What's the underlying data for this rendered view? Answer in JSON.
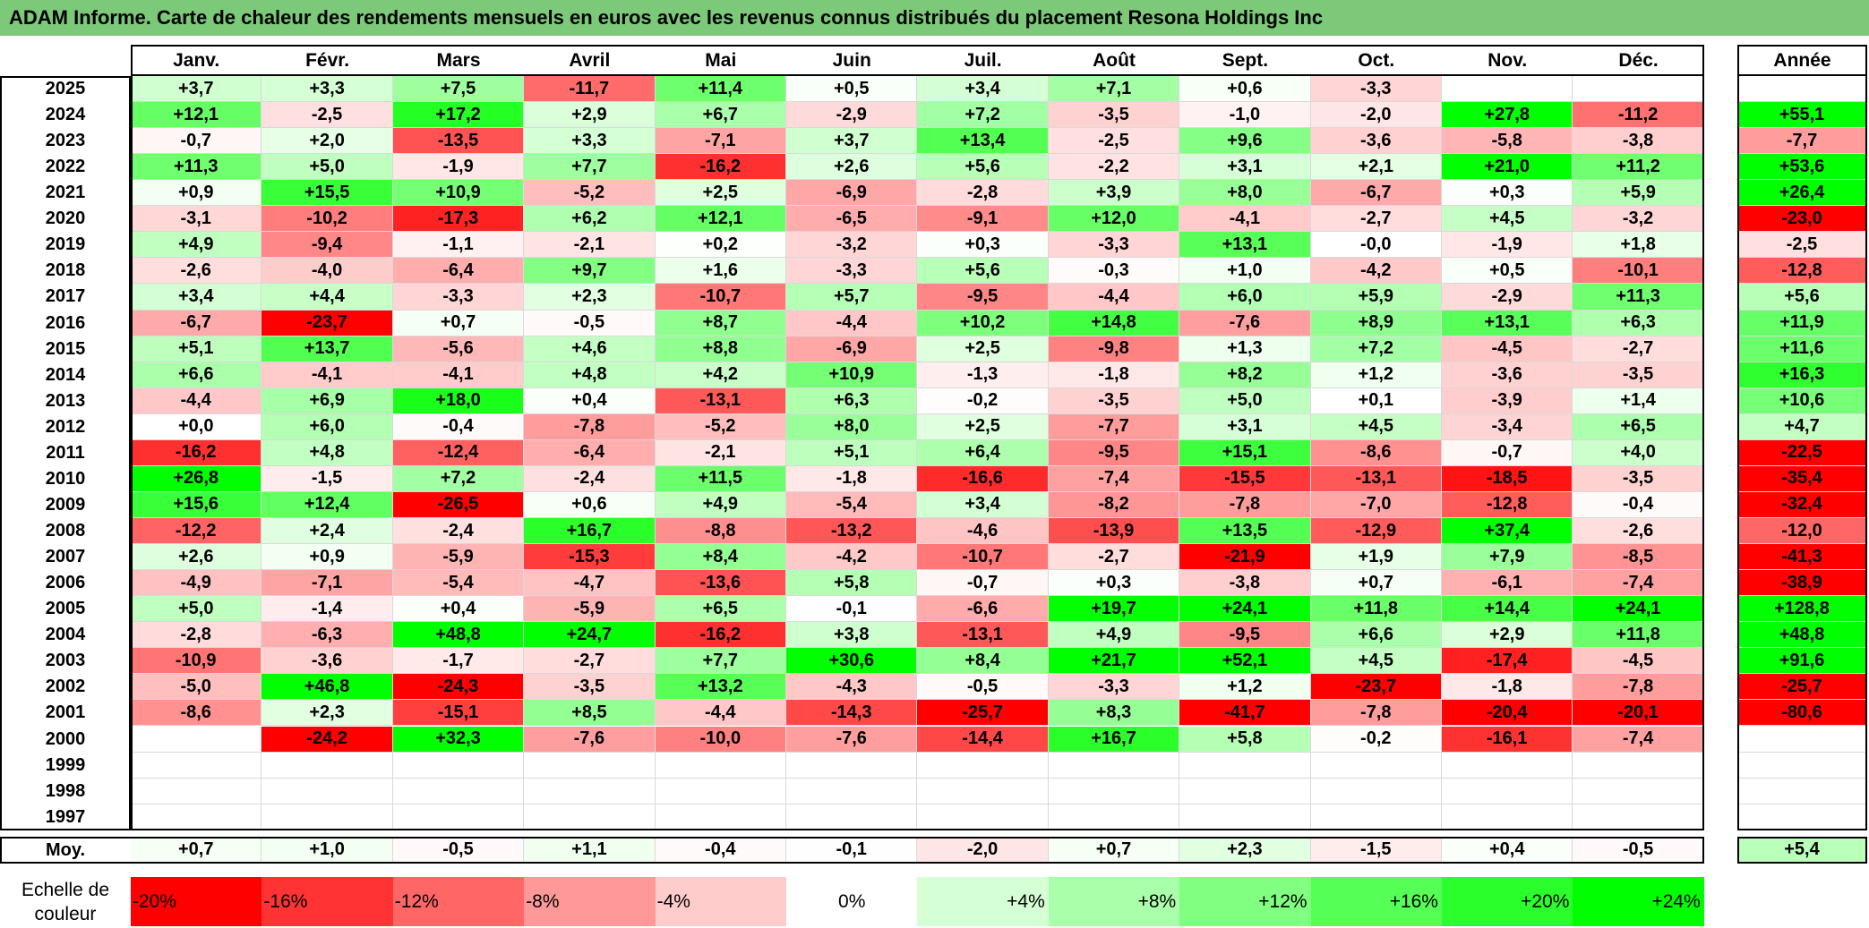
{
  "title": "ADAM Informe. Carte de chaleur des rendements mensuels en euros avec les revenus connus distribués du placement Resona Holdings Inc",
  "colors": {
    "title_bar": "#7dc97a",
    "negative_max": "#ff0000",
    "neutral": "#ffffff",
    "positive_max": "#00ff00"
  },
  "chart_data": {
    "type": "heatmap",
    "title": "ADAM Informe. Carte de chaleur des rendements mensuels en euros avec les revenus connus distribués du placement Resona Holdings Inc",
    "columns": [
      "Janv.",
      "Févr.",
      "Mars",
      "Avril",
      "Mai",
      "Juin",
      "Juil.",
      "Août",
      "Sept.",
      "Oct.",
      "Nov.",
      "Déc."
    ],
    "year_column_label": "Année",
    "rows": [
      {
        "year": "2025",
        "values": [
          "+3,7",
          "+3,3",
          "+7,5",
          "-11,7",
          "+11,4",
          "+0,5",
          "+3,4",
          "+7,1",
          "+0,6",
          "-3,3",
          "",
          ""
        ],
        "annual": ""
      },
      {
        "year": "2024",
        "values": [
          "+12,1",
          "-2,5",
          "+17,2",
          "+2,9",
          "+6,7",
          "-2,9",
          "+7,2",
          "-3,5",
          "-1,0",
          "-2,0",
          "+27,8",
          "-11,2"
        ],
        "annual": "+55,1"
      },
      {
        "year": "2023",
        "values": [
          "-0,7",
          "+2,0",
          "-13,5",
          "+3,3",
          "-7,1",
          "+3,7",
          "+13,4",
          "-2,5",
          "+9,6",
          "-3,6",
          "-5,8",
          "-3,8"
        ],
        "annual": "-7,7"
      },
      {
        "year": "2022",
        "values": [
          "+11,3",
          "+5,0",
          "-1,9",
          "+7,7",
          "-16,2",
          "+2,6",
          "+5,6",
          "-2,2",
          "+3,1",
          "+2,1",
          "+21,0",
          "+11,2"
        ],
        "annual": "+53,6"
      },
      {
        "year": "2021",
        "values": [
          "+0,9",
          "+15,5",
          "+10,9",
          "-5,2",
          "+2,5",
          "-6,9",
          "-2,8",
          "+3,9",
          "+8,0",
          "-6,7",
          "+0,3",
          "+5,9"
        ],
        "annual": "+26,4"
      },
      {
        "year": "2020",
        "values": [
          "-3,1",
          "-10,2",
          "-17,3",
          "+6,2",
          "+12,1",
          "-6,5",
          "-9,1",
          "+12,0",
          "-4,1",
          "-2,7",
          "+4,5",
          "-3,2"
        ],
        "annual": "-23,0"
      },
      {
        "year": "2019",
        "values": [
          "+4,9",
          "-9,4",
          "-1,1",
          "-2,1",
          "+0,2",
          "-3,2",
          "+0,3",
          "-3,3",
          "+13,1",
          "-0,0",
          "-1,9",
          "+1,8"
        ],
        "annual": "-2,5"
      },
      {
        "year": "2018",
        "values": [
          "-2,6",
          "-4,0",
          "-6,4",
          "+9,7",
          "+1,6",
          "-3,3",
          "+5,6",
          "-0,3",
          "+1,0",
          "-4,2",
          "+0,5",
          "-10,1"
        ],
        "annual": "-12,8"
      },
      {
        "year": "2017",
        "values": [
          "+3,4",
          "+4,4",
          "-3,3",
          "+2,3",
          "-10,7",
          "+5,7",
          "-9,5",
          "-4,4",
          "+6,0",
          "+5,9",
          "-2,9",
          "+11,3"
        ],
        "annual": "+5,6"
      },
      {
        "year": "2016",
        "values": [
          "-6,7",
          "-23,7",
          "+0,7",
          "-0,5",
          "+8,7",
          "-4,4",
          "+10,2",
          "+14,8",
          "-7,6",
          "+8,9",
          "+13,1",
          "+6,3"
        ],
        "annual": "+11,9"
      },
      {
        "year": "2015",
        "values": [
          "+5,1",
          "+13,7",
          "-5,6",
          "+4,6",
          "+8,8",
          "-6,9",
          "+2,5",
          "-9,8",
          "+1,3",
          "+7,2",
          "-4,5",
          "-2,7"
        ],
        "annual": "+11,6"
      },
      {
        "year": "2014",
        "values": [
          "+6,6",
          "-4,1",
          "-4,1",
          "+4,8",
          "+4,2",
          "+10,9",
          "-1,3",
          "-1,8",
          "+8,2",
          "+1,2",
          "-3,6",
          "-3,5"
        ],
        "annual": "+16,3"
      },
      {
        "year": "2013",
        "values": [
          "-4,4",
          "+6,9",
          "+18,0",
          "+0,4",
          "-13,1",
          "+6,3",
          "-0,2",
          "-3,5",
          "+5,0",
          "+0,1",
          "-3,9",
          "+1,4"
        ],
        "annual": "+10,6"
      },
      {
        "year": "2012",
        "values": [
          "+0,0",
          "+6,0",
          "-0,4",
          "-7,8",
          "-5,2",
          "+8,0",
          "+2,5",
          "-7,7",
          "+3,1",
          "+4,5",
          "-3,4",
          "+6,5"
        ],
        "annual": "+4,7"
      },
      {
        "year": "2011",
        "values": [
          "-16,2",
          "+4,8",
          "-12,4",
          "-6,4",
          "-2,1",
          "+5,1",
          "+6,4",
          "-9,5",
          "+15,1",
          "-8,6",
          "-0,7",
          "+4,0"
        ],
        "annual": "-22,5"
      },
      {
        "year": "2010",
        "values": [
          "+26,8",
          "-1,5",
          "+7,2",
          "-2,4",
          "+11,5",
          "-1,8",
          "-16,6",
          "-7,4",
          "-15,5",
          "-13,1",
          "-18,5",
          "-3,5"
        ],
        "annual": "-35,4"
      },
      {
        "year": "2009",
        "values": [
          "+15,6",
          "+12,4",
          "-26,5",
          "+0,6",
          "+4,9",
          "-5,4",
          "+3,4",
          "-8,2",
          "-7,8",
          "-7,0",
          "-12,8",
          "-0,4"
        ],
        "annual": "-32,4"
      },
      {
        "year": "2008",
        "values": [
          "-12,2",
          "+2,4",
          "-2,4",
          "+16,7",
          "-8,8",
          "-13,2",
          "-4,6",
          "-13,9",
          "+13,5",
          "-12,9",
          "+37,4",
          "-2,6"
        ],
        "annual": "-12,0"
      },
      {
        "year": "2007",
        "values": [
          "+2,6",
          "+0,9",
          "-5,9",
          "-15,3",
          "+8,4",
          "-4,2",
          "-10,7",
          "-2,7",
          "-21,9",
          "+1,9",
          "+7,9",
          "-8,5"
        ],
        "annual": "-41,3"
      },
      {
        "year": "2006",
        "values": [
          "-4,9",
          "-7,1",
          "-5,4",
          "-4,7",
          "-13,6",
          "+5,8",
          "-0,7",
          "+0,3",
          "-3,8",
          "+0,7",
          "-6,1",
          "-7,4"
        ],
        "annual": "-38,9"
      },
      {
        "year": "2005",
        "values": [
          "+5,0",
          "-1,4",
          "+0,4",
          "-5,9",
          "+6,5",
          "-0,1",
          "-6,6",
          "+19,7",
          "+24,1",
          "+11,8",
          "+14,4",
          "+24,1"
        ],
        "annual": "+128,8"
      },
      {
        "year": "2004",
        "values": [
          "-2,8",
          "-6,3",
          "+48,8",
          "+24,7",
          "-16,2",
          "+3,8",
          "-13,1",
          "+4,9",
          "-9,5",
          "+6,6",
          "+2,9",
          "+11,8"
        ],
        "annual": "+48,8"
      },
      {
        "year": "2003",
        "values": [
          "-10,9",
          "-3,6",
          "-1,7",
          "-2,7",
          "+7,7",
          "+30,6",
          "+8,4",
          "+21,7",
          "+52,1",
          "+4,5",
          "-17,4",
          "-4,5"
        ],
        "annual": "+91,6"
      },
      {
        "year": "2002",
        "values": [
          "-5,0",
          "+46,8",
          "-24,3",
          "-3,5",
          "+13,2",
          "-4,3",
          "-0,5",
          "-3,3",
          "+1,2",
          "-23,7",
          "-1,8",
          "-7,8"
        ],
        "annual": "-25,7"
      },
      {
        "year": "2001",
        "values": [
          "-8,6",
          "+2,3",
          "-15,1",
          "+8,5",
          "-4,4",
          "-14,3",
          "-25,7",
          "+8,3",
          "-41,7",
          "-7,8",
          "-20,4",
          "-20,1"
        ],
        "annual": "-80,6"
      },
      {
        "year": "2000",
        "values": [
          "",
          "-24,2",
          "+32,3",
          "-7,6",
          "-10,0",
          "-7,6",
          "-14,4",
          "+16,7",
          "+5,8",
          "-0,2",
          "-16,1",
          "-7,4"
        ],
        "annual": ""
      },
      {
        "year": "1999",
        "values": [
          "",
          "",
          "",
          "",
          "",
          "",
          "",
          "",
          "",
          "",
          "",
          ""
        ],
        "annual": ""
      },
      {
        "year": "1998",
        "values": [
          "",
          "",
          "",
          "",
          "",
          "",
          "",
          "",
          "",
          "",
          "",
          ""
        ],
        "annual": ""
      },
      {
        "year": "1997",
        "values": [
          "",
          "",
          "",
          "",
          "",
          "",
          "",
          "",
          "",
          "",
          "",
          ""
        ],
        "annual": ""
      }
    ],
    "average": {
      "label": "Moy.",
      "values": [
        "+0,7",
        "+1,0",
        "-0,5",
        "+1,1",
        "-0,4",
        "-0,1",
        "-2,0",
        "+0,7",
        "+2,3",
        "-1,5",
        "+0,4",
        "-0,5"
      ],
      "annual": "+5,4"
    },
    "color_scale": {
      "label": "Echelle de couleur",
      "steps": [
        "-20%",
        "-16%",
        "-12%",
        "-8%",
        "-4%",
        "0%",
        "+4%",
        "+8%",
        "+12%",
        "+16%",
        "+20%",
        "+24%"
      ],
      "range": [
        -20,
        24
      ]
    }
  }
}
